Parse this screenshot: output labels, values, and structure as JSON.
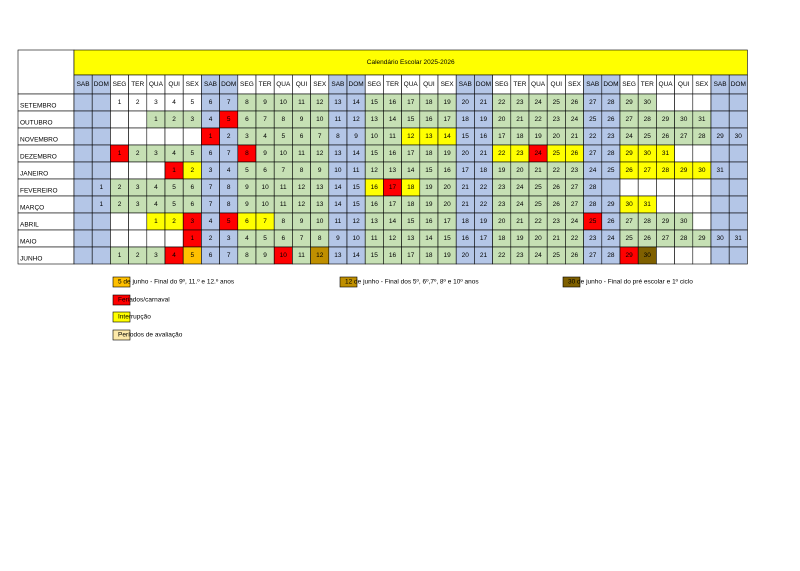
{
  "title": "Calendário Escolar 2025-2026",
  "weekdays": [
    "SAB",
    "DOM",
    "SEG",
    "TER",
    "QUA",
    "QUI",
    "SEX",
    "SAB",
    "DOM",
    "SEG",
    "TER",
    "QUA",
    "QUI",
    "SEX",
    "SAB",
    "DOM",
    "SEG",
    "TER",
    "QUA",
    "QUI",
    "SEX",
    "SAB",
    "DOM",
    "SEG",
    "TER",
    "QUA",
    "QUI",
    "SEX",
    "SAB",
    "DOM",
    "SEG",
    "TER",
    "QUA",
    "QUI",
    "SEX",
    "SAB",
    "DOM"
  ],
  "months": [
    {
      "label": "SETEMBRO",
      "cells": [
        null,
        null,
        1,
        2,
        3,
        4,
        5,
        6,
        7,
        8,
        9,
        10,
        11,
        12,
        13,
        14,
        15,
        16,
        17,
        18,
        19,
        20,
        21,
        22,
        23,
        24,
        25,
        26,
        27,
        28,
        29,
        30,
        null,
        null,
        null,
        null,
        null
      ],
      "colors": {
        "1": "#ffffff",
        "2": "#ffffff",
        "3": "#ffffff",
        "4": "#ffffff",
        "5": "#ffffff"
      }
    },
    {
      "label": "OUTUBRO",
      "cells": [
        null,
        null,
        null,
        null,
        1,
        2,
        3,
        4,
        5,
        6,
        7,
        8,
        9,
        10,
        11,
        12,
        13,
        14,
        15,
        16,
        17,
        18,
        19,
        20,
        21,
        22,
        23,
        24,
        25,
        26,
        27,
        28,
        29,
        30,
        31,
        null,
        null
      ],
      "colors": {
        "5": "#ff0000"
      }
    },
    {
      "label": "NOVEMBRO",
      "cells": [
        null,
        null,
        null,
        null,
        null,
        null,
        null,
        1,
        2,
        3,
        4,
        5,
        6,
        7,
        8,
        9,
        10,
        11,
        12,
        13,
        14,
        15,
        16,
        17,
        18,
        19,
        20,
        21,
        22,
        23,
        24,
        25,
        26,
        27,
        28,
        29,
        30
      ],
      "colors": {
        "1": "#ff0000",
        "12": "#ffff00",
        "13": "#ffff00",
        "14": "#ffff00"
      }
    },
    {
      "label": "DEZEMBRO",
      "cells": [
        null,
        null,
        1,
        2,
        3,
        4,
        5,
        6,
        7,
        8,
        9,
        10,
        11,
        12,
        13,
        14,
        15,
        16,
        17,
        18,
        19,
        20,
        21,
        22,
        23,
        24,
        25,
        26,
        27,
        28,
        29,
        30,
        31,
        null,
        null,
        null,
        null
      ],
      "colors": {
        "1": "#ff0000",
        "8": "#ff0000",
        "22": "#ffff00",
        "23": "#ffff00",
        "24": "#ff0000",
        "25": "#ffff00",
        "26": "#ffff00",
        "29": "#ffff00",
        "30": "#ffff00",
        "31": "#ffff00"
      }
    },
    {
      "label": "JANEIRO",
      "cells": [
        null,
        null,
        null,
        null,
        null,
        1,
        2,
        3,
        4,
        5,
        6,
        7,
        8,
        9,
        10,
        11,
        12,
        13,
        14,
        15,
        16,
        17,
        18,
        19,
        20,
        21,
        22,
        23,
        24,
        25,
        26,
        27,
        28,
        29,
        30,
        31,
        null
      ],
      "colors": {
        "1": "#ff0000",
        "2": "#ffff00",
        "26": "#ffff00",
        "27": "#ffff00",
        "28": "#ffff00",
        "29": "#ffff00",
        "30": "#ffff00"
      }
    },
    {
      "label": "FEVEREIRO",
      "cells": [
        null,
        1,
        2,
        3,
        4,
        5,
        6,
        7,
        8,
        9,
        10,
        11,
        12,
        13,
        14,
        15,
        16,
        17,
        18,
        19,
        20,
        21,
        22,
        23,
        24,
        25,
        26,
        27,
        28,
        null,
        null,
        null,
        null,
        null,
        null,
        null,
        null
      ],
      "colors": {
        "16": "#ffff00",
        "17": "#ff0000",
        "18": "#ffff00"
      }
    },
    {
      "label": "MARÇO",
      "cells": [
        null,
        1,
        2,
        3,
        4,
        5,
        6,
        7,
        8,
        9,
        10,
        11,
        12,
        13,
        14,
        15,
        16,
        17,
        18,
        19,
        20,
        21,
        22,
        23,
        24,
        25,
        26,
        27,
        28,
        29,
        30,
        31,
        null,
        null,
        null,
        null,
        null
      ],
      "colors": {
        "30": "#ffff00",
        "31": "#ffff00"
      }
    },
    {
      "label": "ABRIL",
      "cells": [
        null,
        null,
        null,
        null,
        1,
        2,
        3,
        4,
        5,
        6,
        7,
        8,
        9,
        10,
        11,
        12,
        13,
        14,
        15,
        16,
        17,
        18,
        19,
        20,
        21,
        22,
        23,
        24,
        25,
        26,
        27,
        28,
        29,
        30,
        null,
        null,
        null
      ],
      "colors": {
        "1": "#ffff00",
        "2": "#ffff00",
        "3": "#ff0000",
        "5": "#ff0000",
        "6": "#ffff00",
        "7": "#ffff00",
        "25": "#ff0000"
      }
    },
    {
      "label": "MAIO",
      "cells": [
        null,
        null,
        null,
        null,
        null,
        null,
        1,
        2,
        3,
        4,
        5,
        6,
        7,
        8,
        9,
        10,
        11,
        12,
        13,
        14,
        15,
        16,
        17,
        18,
        19,
        20,
        21,
        22,
        23,
        24,
        25,
        26,
        27,
        28,
        29,
        30,
        31
      ],
      "colors": {
        "1": "#ff0000"
      }
    },
    {
      "label": "JUNHO",
      "cells": [
        null,
        null,
        1,
        2,
        3,
        4,
        5,
        6,
        7,
        8,
        9,
        10,
        11,
        12,
        13,
        14,
        15,
        16,
        17,
        18,
        19,
        20,
        21,
        22,
        23,
        24,
        25,
        26,
        27,
        28,
        29,
        30,
        null,
        null,
        null,
        null,
        null
      ],
      "colors": {
        "4": "#ff0000",
        "5": "#ffc000",
        "10": "#ff0000",
        "12": "#bf8f00",
        "29": "#ff0000",
        "30": "#7f6000"
      }
    }
  ],
  "legend": [
    {
      "label": "5 de junho - Final do 9º, 11.º e 12.º anos",
      "color": "#ffc000"
    },
    {
      "label": "Feriados/carnaval",
      "color": "#ff0000"
    },
    {
      "label": "Interrupção",
      "color": "#ffff00"
    },
    {
      "label": "Períodos de avaliação",
      "color": "#fde9a9"
    },
    {
      "label": "12 de junho - Final dos 5º, 6º,7º, 8º e 10º anos",
      "color": "#bf8f00"
    },
    {
      "label": "30 de junho - Final do pré escolar e 1º ciclo",
      "color": "#7f6000"
    }
  ],
  "base_colors": {
    "weekend": "#b4c6e7",
    "school": "#c6e0b4",
    "empty": "#ffffff",
    "title": "#ffff00"
  }
}
